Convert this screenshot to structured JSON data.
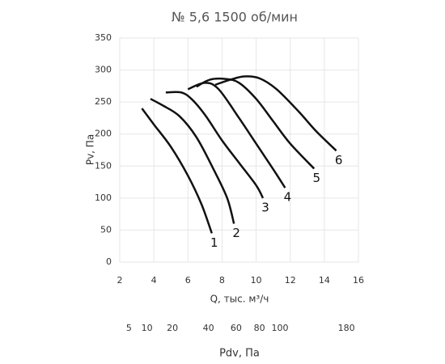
{
  "chart_data": {
    "type": "line",
    "title": "№ 5,6 1500 об/мин",
    "xlabel": "Q, тыс. м³/ч",
    "ylabel": "Pv, Па",
    "xlim": [
      2,
      16
    ],
    "xticks": [
      2,
      4,
      6,
      8,
      10,
      12,
      14,
      16
    ],
    "ylim": [
      0,
      350
    ],
    "yticks": [
      0,
      50,
      100,
      150,
      200,
      250,
      300,
      350
    ],
    "grid": true,
    "x2label": "Pdv, Па",
    "x2scale": "sqrt",
    "x2lim": [
      3.1,
      197
    ],
    "x2ticks": [
      5,
      10,
      20,
      40,
      60,
      80,
      100,
      180
    ],
    "series": [
      {
        "name": "1",
        "color": "#111111",
        "x": [
          3.3,
          4,
          5,
          6,
          6.8,
          7.4
        ],
        "values": [
          240,
          215,
          180,
          135,
          90,
          45
        ]
      },
      {
        "name": "2",
        "color": "#111111",
        "x": [
          3.8,
          4.5,
          5.5,
          6.5,
          7.5,
          8.3,
          8.7
        ],
        "values": [
          255,
          245,
          228,
          195,
          145,
          100,
          60
        ]
      },
      {
        "name": "3",
        "color": "#111111",
        "x": [
          4.7,
          5.6,
          6.2,
          7,
          8,
          9,
          10,
          10.4
        ],
        "values": [
          265,
          265,
          255,
          230,
          190,
          155,
          120,
          100
        ]
      },
      {
        "name": "4",
        "color": "#111111",
        "x": [
          6,
          7,
          7.8,
          9,
          10,
          11,
          11.7
        ],
        "values": [
          270,
          280,
          270,
          225,
          185,
          145,
          116
        ]
      },
      {
        "name": "5",
        "color": "#111111",
        "x": [
          6.5,
          7.3,
          8.2,
          9,
          10,
          11,
          12,
          13.4
        ],
        "values": [
          274,
          285,
          286,
          280,
          255,
          220,
          185,
          146
        ]
      },
      {
        "name": "6",
        "color": "#111111",
        "x": [
          7.6,
          8.5,
          9.3,
          10.2,
          11.2,
          12.5,
          13.5,
          14.7
        ],
        "values": [
          277,
          285,
          290,
          287,
          270,
          235,
          205,
          174
        ]
      }
    ]
  }
}
